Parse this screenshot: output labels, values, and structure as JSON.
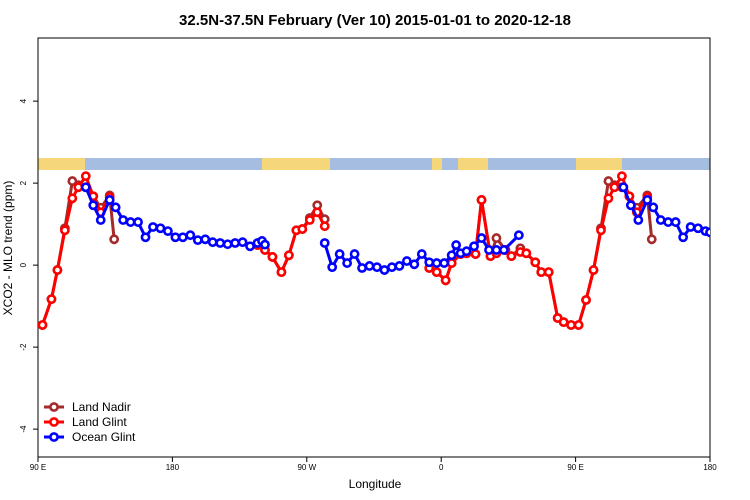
{
  "chart_data": {
    "type": "line",
    "title": "32.5N-37.5N February (Ver 10)   2015-01-01 to 2020-12-18",
    "xlabel": "Longitude",
    "ylabel": "XCO2 - MLO trend (ppm)",
    "xlim": [
      90,
      540
    ],
    "ylim": [
      -4.68,
      5.54
    ],
    "xticks": [
      {
        "value": 90,
        "label": "90 E"
      },
      180,
      {
        "value": 270,
        "label": "90 W"
      },
      {
        "value": 360,
        "label": "0"
      },
      {
        "value": 450,
        "label": "90 E"
      },
      {
        "value": 540,
        "label": "180"
      }
    ],
    "yticks": [
      -4,
      -2,
      0,
      2,
      4
    ],
    "legend": "lower left",
    "series": [
      {
        "name": "Land Nadir",
        "color": "#a52a2a",
        "x": [
          93,
          99,
          103,
          108,
          113,
          117,
          122,
          127,
          132,
          138,
          141,
          200,
          237,
          242,
          247,
          253,
          258,
          263,
          267,
          272,
          277,
          282,
          320,
          352,
          357,
          363,
          367,
          373,
          377,
          383,
          387,
          393,
          397,
          403,
          407,
          413,
          417,
          423,
          427,
          432,
          438,
          442,
          447,
          452,
          457,
          462,
          467,
          472,
          476,
          481,
          486,
          491,
          498,
          501
        ],
        "values": [
          -1.46,
          -0.83,
          -0.12,
          0.9,
          2.05,
          1.95,
          1.9,
          1.68,
          1.4,
          1.7,
          0.63,
          null,
          0.49,
          0.37,
          0.2,
          -0.17,
          0.24,
          0.85,
          0.88,
          1.15,
          1.46,
          1.12,
          null,
          -0.07,
          -0.17,
          -0.37,
          0.05,
          0.27,
          0.29,
          0.27,
          1.59,
          0.22,
          0.66,
          0.37,
          0.22,
          0.41,
          0.29,
          0.07,
          -0.17,
          -0.17,
          -1.29,
          -1.39,
          -1.46,
          -1.46,
          -0.85,
          -0.12,
          0.9,
          2.05,
          1.95,
          1.9,
          1.68,
          1.4,
          1.7,
          0.63
        ]
      },
      {
        "name": "Land Glint",
        "color": "#ff0000",
        "x": [
          93,
          99,
          103,
          108,
          113,
          117,
          122,
          127,
          132,
          138,
          200,
          237,
          242,
          247,
          253,
          258,
          263,
          267,
          272,
          277,
          282,
          320,
          352,
          357,
          363,
          367,
          373,
          377,
          383,
          387,
          393,
          397,
          403,
          407,
          413,
          417,
          423,
          427,
          432,
          438,
          442,
          447,
          452,
          457,
          462,
          467,
          472,
          476,
          481,
          486,
          491,
          498
        ],
        "values": [
          -1.46,
          -0.83,
          -0.12,
          0.85,
          1.63,
          1.9,
          2.17,
          1.68,
          1.29,
          1.66,
          null,
          0.49,
          0.37,
          0.2,
          -0.17,
          0.24,
          0.85,
          0.88,
          1.1,
          1.29,
          0.95,
          null,
          -0.07,
          -0.17,
          -0.37,
          0.05,
          0.27,
          0.29,
          0.27,
          1.59,
          0.22,
          0.29,
          0.37,
          0.22,
          0.32,
          0.29,
          0.07,
          -0.17,
          -0.17,
          -1.29,
          -1.39,
          -1.46,
          -1.46,
          -0.85,
          -0.12,
          0.85,
          1.63,
          1.9,
          2.17,
          1.68,
          1.29,
          1.66
        ]
      },
      {
        "name": "Ocean Glint",
        "color": "#0000ff",
        "x": [
          122,
          127,
          132,
          138,
          142,
          147,
          152,
          157,
          162,
          167,
          172,
          177,
          182,
          187,
          192,
          197,
          202,
          207,
          212,
          217,
          222,
          227,
          232,
          237,
          240,
          242,
          260,
          282,
          287,
          292,
          297,
          302,
          307,
          312,
          317,
          322,
          327,
          332,
          337,
          342,
          347,
          352,
          357,
          362,
          367,
          370,
          373,
          377,
          382,
          387,
          392,
          397,
          402,
          412,
          450,
          482,
          487,
          492,
          498,
          502,
          507,
          512,
          517,
          522,
          527,
          532,
          537,
          540
        ],
        "values": [
          1.9,
          1.46,
          1.1,
          1.59,
          1.41,
          1.1,
          1.05,
          1.05,
          0.68,
          0.93,
          0.9,
          0.83,
          0.68,
          0.68,
          0.73,
          0.61,
          0.63,
          0.56,
          0.54,
          0.51,
          0.54,
          0.56,
          0.46,
          0.54,
          0.59,
          0.5,
          null,
          0.54,
          -0.05,
          0.27,
          0.05,
          0.27,
          -0.07,
          -0.02,
          -0.05,
          -0.12,
          -0.05,
          -0.02,
          0.1,
          0.02,
          0.27,
          0.07,
          0.05,
          0.05,
          0.24,
          0.49,
          0.29,
          0.34,
          0.46,
          0.66,
          0.37,
          0.37,
          0.37,
          0.73,
          null,
          1.9,
          1.46,
          1.1,
          1.59,
          1.41,
          1.1,
          1.05,
          1.05,
          0.68,
          0.93,
          0.9,
          0.83,
          0.8
        ]
      }
    ]
  }
}
